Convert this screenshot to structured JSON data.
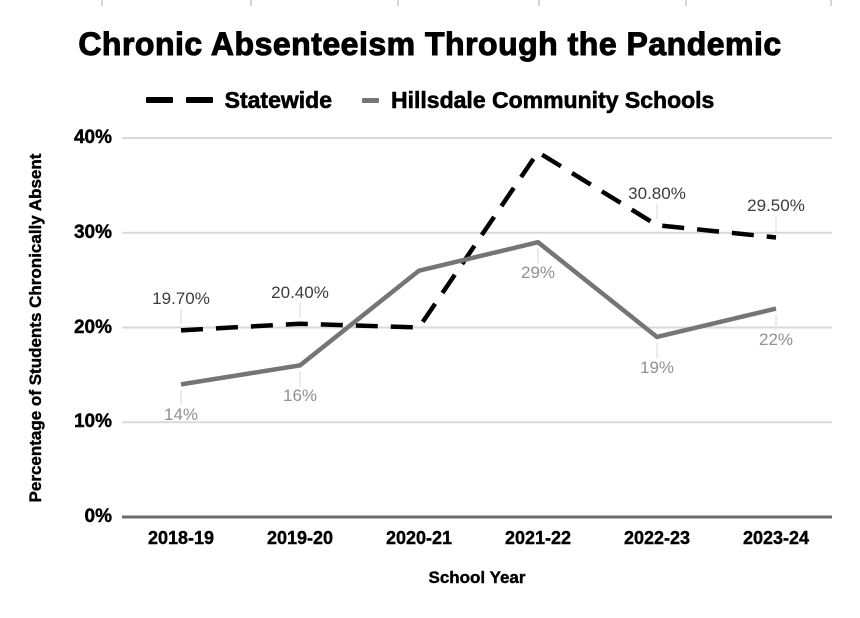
{
  "chart_data": {
    "type": "line",
    "title": "Chronic Absenteeism Through the Pandemic",
    "xlabel": "School Year",
    "ylabel": "Percentage of Students Chronically Absent",
    "categories": [
      "2018-19",
      "2019-20",
      "2020-21",
      "2021-22",
      "2022-23",
      "2023-24"
    ],
    "y_ticks": [
      "0%",
      "10%",
      "20%",
      "30%",
      "40%"
    ],
    "ylim": [
      0,
      40
    ],
    "grid": "horizontal-only",
    "legend_position": "top-center",
    "series": [
      {
        "name": "Statewide",
        "color": "#000000",
        "style": "dashed",
        "values": [
          19.7,
          20.4,
          20.0,
          38.5,
          30.8,
          29.5
        ],
        "data_labels": [
          "19.70%",
          "20.40%",
          null,
          null,
          "30.80%",
          "29.50%"
        ],
        "label_color": "#3c3c3c",
        "label_side": "above"
      },
      {
        "name": "Hillsdale Community Schools",
        "color": "#757575",
        "style": "solid",
        "values": [
          14,
          16,
          26,
          29,
          19,
          22
        ],
        "data_labels": [
          "14%",
          "16%",
          null,
          "29%",
          "19%",
          "22%"
        ],
        "label_color": "#909090",
        "label_side": "below"
      }
    ],
    "colors": {
      "grid": "#d9d9d9",
      "baseline": "#6b6b6b",
      "leader": "#e4e4e4",
      "top_ticks": "#d6d6da",
      "background": "#ffffff"
    }
  }
}
